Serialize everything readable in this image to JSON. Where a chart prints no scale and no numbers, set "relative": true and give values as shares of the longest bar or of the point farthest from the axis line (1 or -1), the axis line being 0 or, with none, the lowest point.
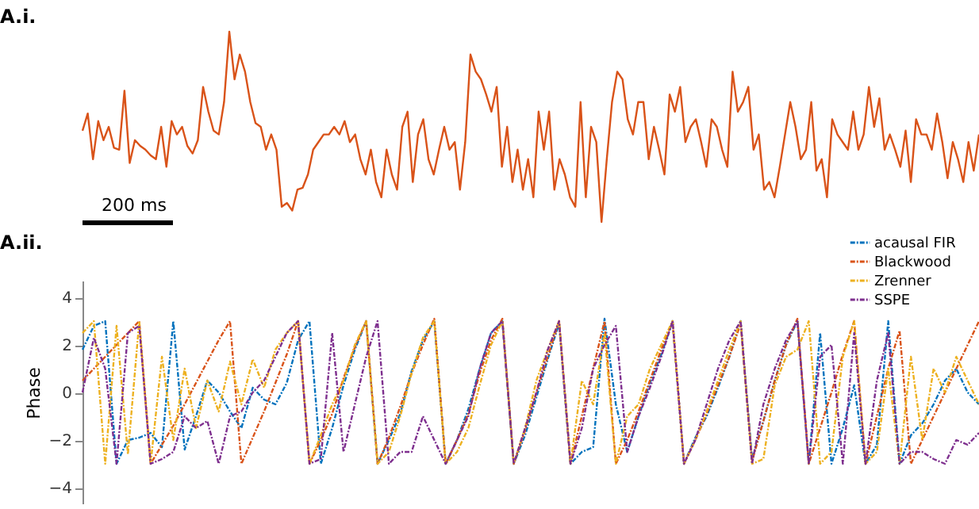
{
  "chart_data": [
    {
      "type": "line",
      "title": "A.i.",
      "relative": true,
      "tick_labels": false,
      "annotations": [
        "200 ms"
      ],
      "categories": [
        null,
        null,
        null,
        null,
        null,
        null,
        null,
        null,
        null,
        null,
        null,
        null,
        null,
        null,
        null,
        null,
        null,
        null,
        null,
        null,
        null,
        null,
        null,
        null,
        null,
        null,
        null,
        null,
        null,
        null,
        null,
        null,
        null,
        null,
        null,
        null,
        null,
        null,
        null,
        null,
        null,
        null,
        null,
        null,
        null,
        null,
        null,
        null,
        null,
        null,
        null,
        null,
        null,
        null,
        null,
        null,
        null,
        null,
        null,
        null,
        null,
        null,
        null,
        null,
        null,
        null,
        null,
        null,
        null,
        null,
        null,
        null,
        null,
        null,
        null,
        null,
        null,
        null,
        null,
        null,
        null,
        null,
        null,
        null,
        null,
        null,
        null,
        null,
        null,
        null,
        null,
        null,
        null,
        null,
        null,
        null,
        null,
        null,
        null,
        null,
        null,
        null,
        null,
        null,
        null,
        null,
        null,
        null,
        null,
        null,
        null,
        null,
        null,
        null,
        null,
        null,
        null,
        null,
        null,
        null,
        null,
        null,
        null,
        null,
        null,
        null,
        null,
        null,
        null,
        null,
        null,
        null,
        null,
        null,
        null,
        null,
        null,
        null,
        null,
        null,
        null,
        null,
        null,
        null,
        null,
        null,
        null,
        null,
        null,
        null,
        null,
        null,
        null,
        null,
        null,
        null,
        null,
        null,
        null,
        null,
        null,
        null,
        null,
        null,
        null,
        null,
        null,
        null,
        null,
        null,
        null,
        null
      ],
      "series": [
        {
          "color": "#d95319",
          "values": [
            0.48,
            0.57,
            0.33,
            0.53,
            0.43,
            0.5,
            0.39,
            0.38,
            0.69,
            0.31,
            0.43,
            0.4,
            0.38,
            0.35,
            0.33,
            0.5,
            0.29,
            0.53,
            0.46,
            0.5,
            0.4,
            0.36,
            0.43,
            0.71,
            0.58,
            0.48,
            0.46,
            0.63,
            1,
            0.75,
            0.88,
            0.79,
            0.63,
            0.52,
            0.5,
            0.38,
            0.46,
            0.38,
            0.08,
            0.1,
            0.06,
            0.17,
            0.18,
            0.25,
            0.38,
            0.42,
            0.46,
            0.46,
            0.5,
            0.46,
            0.53,
            0.42,
            0.46,
            0.33,
            0.25,
            0.38,
            0.21,
            0.13,
            0.38,
            0.25,
            0.17,
            0.5,
            0.58,
            0.21,
            0.46,
            0.54,
            0.33,
            0.25,
            0.38,
            0.5,
            0.38,
            0.42,
            0.17,
            0.42,
            0.88,
            0.79,
            0.75,
            0.67,
            0.58,
            0.71,
            0.29,
            0.5,
            0.21,
            0.38,
            0.17,
            0.33,
            0.13,
            0.58,
            0.38,
            0.58,
            0.17,
            0.33,
            0.25,
            0.13,
            0.08,
            0.63,
            0.13,
            0.5,
            0.42,
            0,
            0.33,
            0.63,
            0.79,
            0.75,
            0.54,
            0.46,
            0.63,
            0.63,
            0.33,
            0.5,
            0.38,
            0.25,
            0.67,
            0.58,
            0.71,
            0.42,
            0.5,
            0.54,
            0.42,
            0.29,
            0.54,
            0.5,
            0.38,
            0.29,
            0.79,
            0.58,
            0.63,
            0.71,
            0.38,
            0.46,
            0.17,
            0.21,
            0.13,
            0.29,
            0.46,
            0.63,
            0.5,
            0.33,
            0.38,
            0.63,
            0.27,
            0.33,
            0.13,
            0.54,
            0.46,
            0.42,
            0.38,
            0.58,
            0.38,
            0.46,
            0.71,
            0.5,
            0.65,
            0.38,
            0.46,
            0.38,
            0.29,
            0.48,
            0.21,
            0.54,
            0.46,
            0.46,
            0.38,
            0.57,
            0.42,
            0.23,
            0.42,
            0.33,
            0.21,
            0.42,
            0.27,
            0.46
          ]
        }
      ]
    },
    {
      "type": "line",
      "title": "A.ii.",
      "ylabel": "Phase",
      "ylim": [
        -4.7,
        4.7
      ],
      "yticks": [
        -4,
        -2,
        0,
        2,
        4
      ],
      "tick_labels": "y",
      "legend": "top right",
      "line_style": "dashed",
      "categories": [
        null,
        null,
        null,
        null,
        null,
        null,
        null,
        null,
        null,
        null,
        null,
        null,
        null,
        null,
        null,
        null,
        null,
        null,
        null,
        null,
        null,
        null,
        null,
        null,
        null,
        null,
        null,
        null,
        null,
        null,
        null,
        null,
        null,
        null,
        null,
        null,
        null,
        null,
        null,
        null,
        null,
        null,
        null,
        null,
        null,
        null,
        null,
        null,
        null,
        null,
        null,
        null,
        null,
        null,
        null,
        null,
        null,
        null,
        null,
        null,
        null,
        null,
        null,
        null,
        null,
        null,
        null,
        null,
        null,
        null,
        null,
        null,
        null,
        null,
        null,
        null,
        null,
        null,
        null,
        null
      ],
      "series": [
        {
          "name": "acausal FIR",
          "color": "#0072bd",
          "values": [
            1.8,
            2.8,
            3.0,
            -3.0,
            -2.0,
            -1.9,
            -1.7,
            -2.3,
            3.0,
            -2.4,
            -1.0,
            0.5,
            0.0,
            -0.8,
            -1.5,
            0.2,
            -0.3,
            -0.5,
            0.4,
            2.2,
            3.0,
            -3.0,
            -1.5,
            0.3,
            1.8,
            3.0,
            -3.0,
            -2.0,
            -0.9,
            0.9,
            2.2,
            3.0,
            -3.0,
            -2.0,
            -0.7,
            1.0,
            2.5,
            3.0,
            -3.0,
            -1.8,
            -0.2,
            1.4,
            2.9,
            -3.0,
            -2.5,
            -2.3,
            3.1,
            -0.5,
            -2.5,
            -1.0,
            0.4,
            1.6,
            3.0,
            -3.0,
            -1.9,
            -1.0,
            0.2,
            1.5,
            3.0,
            -2.8,
            -1.2,
            0.5,
            2.0,
            3.0,
            -3.0,
            2.5,
            -3.0,
            -1.5,
            0.3,
            -3.0,
            -2.2,
            3.0,
            -3.0,
            -1.8,
            -1.3,
            -0.5,
            0.5,
            1.0,
            0.0,
            -0.5
          ]
        },
        {
          "name": "Blackwood",
          "color": "#d95319",
          "values": [
            0.5,
            1.0,
            1.5,
            2.0,
            2.5,
            3.0,
            -3.0,
            -2.2,
            -1.4,
            -0.5,
            0.4,
            1.3,
            2.2,
            3.0,
            -3.0,
            -1.9,
            -0.8,
            0.4,
            1.6,
            3.0,
            -3.0,
            -2.0,
            -0.9,
            0.6,
            1.9,
            3.0,
            -3.0,
            -1.9,
            -0.6,
            0.8,
            2.0,
            3.1,
            -3.0,
            -2.0,
            -0.9,
            0.8,
            2.2,
            3.1,
            -3.0,
            -1.6,
            0.0,
            1.5,
            3.0,
            -3.0,
            -1.0,
            1.0,
            3.0,
            -3.0,
            -2.0,
            -0.8,
            0.5,
            1.8,
            3.0,
            -3.0,
            -2.0,
            -0.9,
            0.3,
            1.5,
            2.9,
            -2.9,
            -1.2,
            0.5,
            2.0,
            3.1,
            -3.0,
            -1.5,
            0.0,
            1.6,
            3.0,
            -3.0,
            -1.0,
            1.0,
            2.6,
            -3.0,
            -2.0,
            -1.0,
            0.0,
            1.0,
            2.0,
            3.0
          ]
        },
        {
          "name": "Zrenner",
          "color": "#edb120",
          "values": [
            2.5,
            3.0,
            -3.0,
            2.8,
            -2.6,
            3.0,
            -3.0,
            1.5,
            -2.0,
            1.0,
            -1.5,
            0.5,
            -0.8,
            1.3,
            -0.5,
            1.4,
            0.2,
            1.8,
            2.5,
            3.0,
            -3.0,
            -1.8,
            -0.5,
            0.5,
            2.0,
            3.0,
            -3.0,
            -2.5,
            -1.0,
            0.8,
            2.3,
            3.0,
            -3.0,
            -2.5,
            -1.5,
            0.3,
            2.0,
            3.0,
            -3.0,
            -1.5,
            0.5,
            1.8,
            3.0,
            -3.0,
            0.5,
            -0.5,
            2.5,
            -3.0,
            -1.0,
            -0.5,
            1.0,
            2.0,
            3.0,
            -3.0,
            -2.0,
            -0.8,
            0.5,
            1.8,
            3.0,
            -3.0,
            -2.8,
            0.3,
            1.5,
            1.8,
            3.0,
            -3.0,
            -2.5,
            1.5,
            3.0,
            -3.0,
            -2.5,
            1.0,
            -3.0,
            1.5,
            -2.0,
            1.0,
            0.0,
            1.5,
            0.5,
            -0.5
          ]
        },
        {
          "name": "SSPE",
          "color": "#7e2f8e",
          "values": [
            0.0,
            2.3,
            1.0,
            -3.0,
            2.5,
            2.8,
            -3.0,
            -2.8,
            -2.5,
            -1.0,
            -1.5,
            -1.2,
            -3.0,
            -1.0,
            -0.8,
            0.0,
            0.5,
            1.5,
            2.5,
            3.0,
            -3.0,
            -2.8,
            2.5,
            -2.5,
            -0.5,
            1.5,
            3.0,
            -3.0,
            -2.5,
            -2.5,
            -1.0,
            -2.0,
            -3.0,
            -2.0,
            -1.0,
            1.0,
            2.5,
            3.0,
            -3.0,
            -1.5,
            0.0,
            1.8,
            3.0,
            -3.0,
            -1.5,
            1.0,
            2.0,
            2.8,
            -2.5,
            -1.0,
            0.2,
            1.5,
            3.0,
            -3.0,
            -2.0,
            -0.5,
            1.0,
            2.2,
            3.0,
            -3.0,
            -0.5,
            1.0,
            2.2,
            3.0,
            -3.0,
            1.5,
            2.0,
            -3.0,
            2.5,
            -3.0,
            0.5,
            2.5,
            -3.0,
            -2.5,
            -2.5,
            -2.8,
            -3.0,
            -2.0,
            -2.2,
            -1.7
          ]
        }
      ]
    }
  ]
}
